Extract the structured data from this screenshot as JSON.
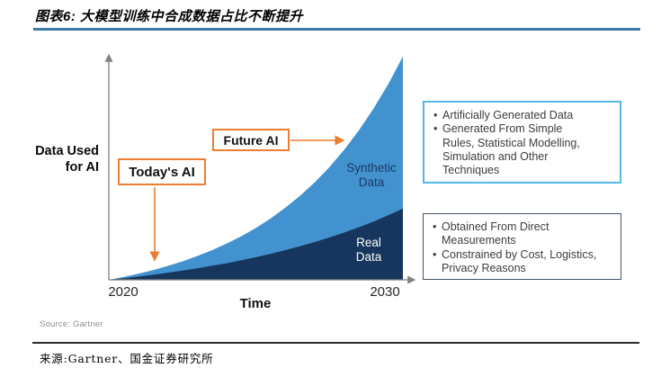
{
  "page": {
    "title": "图表6: 大模型训练中合成数据占比不断提升",
    "source_note": "Source: Gartner",
    "footer_source": "来源:Gartner、国金证券研究所"
  },
  "chart": {
    "y_axis_label": "Data Used\nfor AI",
    "x_axis_label": "Time",
    "x_tick_start": "2020",
    "x_tick_end": "2030",
    "annotations": {
      "today": "Today's AI",
      "future": "Future AI"
    },
    "area_labels": {
      "synthetic": "Synthetic\nData",
      "real": "Real\nData"
    },
    "colors": {
      "synthetic_fill": "#4292CF",
      "real_fill": "#17365D",
      "annotation_orange": "#ED7D31",
      "axis_gray": "#808080",
      "title_rule_blue": "#3E7BA8",
      "info_box1_border": "#56B7E6",
      "info_box2_border": "#44546A",
      "synthetic_label_text": "#1F3864",
      "real_label_text": "#FFFFFF"
    }
  },
  "right_boxes": [
    {
      "items": [
        "Artificially Generated Data",
        "Generated From Simple\nRules, Statistical Modelling,\nSimulation and Other\nTechniques"
      ]
    },
    {
      "items": [
        "Obtained From Direct\nMeasurements",
        "Constrained by Cost, Logistics,\nPrivacy Reasons"
      ]
    }
  ],
  "chart_data": {
    "type": "area",
    "title": "大模型训练中合成数据占比不断提升 (synthetic vs real data used for AI)",
    "xlabel": "Time",
    "ylabel": "Data Used for AI",
    "x_axis_range": [
      2020,
      2030
    ],
    "x_ticks": [
      "2020",
      "2030"
    ],
    "y_axis_note": "conceptual, no numeric scale; values normalized 0-1 of plot height",
    "grid": false,
    "stacked": true,
    "legend_position": "labels inside areas",
    "x_normalized": [
      0,
      0.05,
      0.1,
      0.15,
      0.2,
      0.25,
      0.3,
      0.35,
      0.4,
      0.45,
      0.5,
      0.55,
      0.6,
      0.65,
      0.7,
      0.75,
      0.8,
      0.85,
      0.9,
      0.95,
      1.0
    ],
    "series": [
      {
        "name": "Synthetic Data",
        "color": "#4292CF",
        "stack_top_normalized": [
          0,
          0.012,
          0.026,
          0.042,
          0.06,
          0.08,
          0.103,
          0.128,
          0.157,
          0.189,
          0.225,
          0.266,
          0.313,
          0.365,
          0.423,
          0.489,
          0.564,
          0.648,
          0.743,
          0.849,
          0.97
        ]
      },
      {
        "name": "Real Data",
        "color": "#17365D",
        "stack_top_normalized": [
          0,
          0.007,
          0.014,
          0.022,
          0.031,
          0.04,
          0.05,
          0.061,
          0.072,
          0.085,
          0.098,
          0.113,
          0.129,
          0.146,
          0.164,
          0.184,
          0.205,
          0.228,
          0.253,
          0.28,
          0.309
        ]
      }
    ],
    "annotations": [
      {
        "text": "Today's AI",
        "arrow": "down arrow pointing to curves near 2021-2022"
      },
      {
        "text": "Future AI",
        "arrow": "right arrow pointing to synthetic curve near 2029"
      }
    ]
  }
}
